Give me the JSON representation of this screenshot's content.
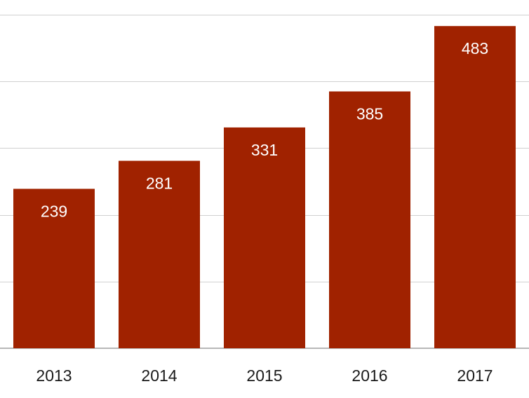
{
  "chart_data": {
    "type": "bar",
    "categories": [
      "2013",
      "2014",
      "2015",
      "2016",
      "2017"
    ],
    "values": [
      239,
      281,
      331,
      385,
      483
    ],
    "title": "",
    "xlabel": "",
    "ylabel": "",
    "ylim": [
      0,
      500
    ],
    "grid": true,
    "legend": "none",
    "colors": {
      "bar": "#A02200",
      "value_label": "#ffffff",
      "grid": "#d0d0d0",
      "tick_label": "#1a1a1a"
    }
  }
}
